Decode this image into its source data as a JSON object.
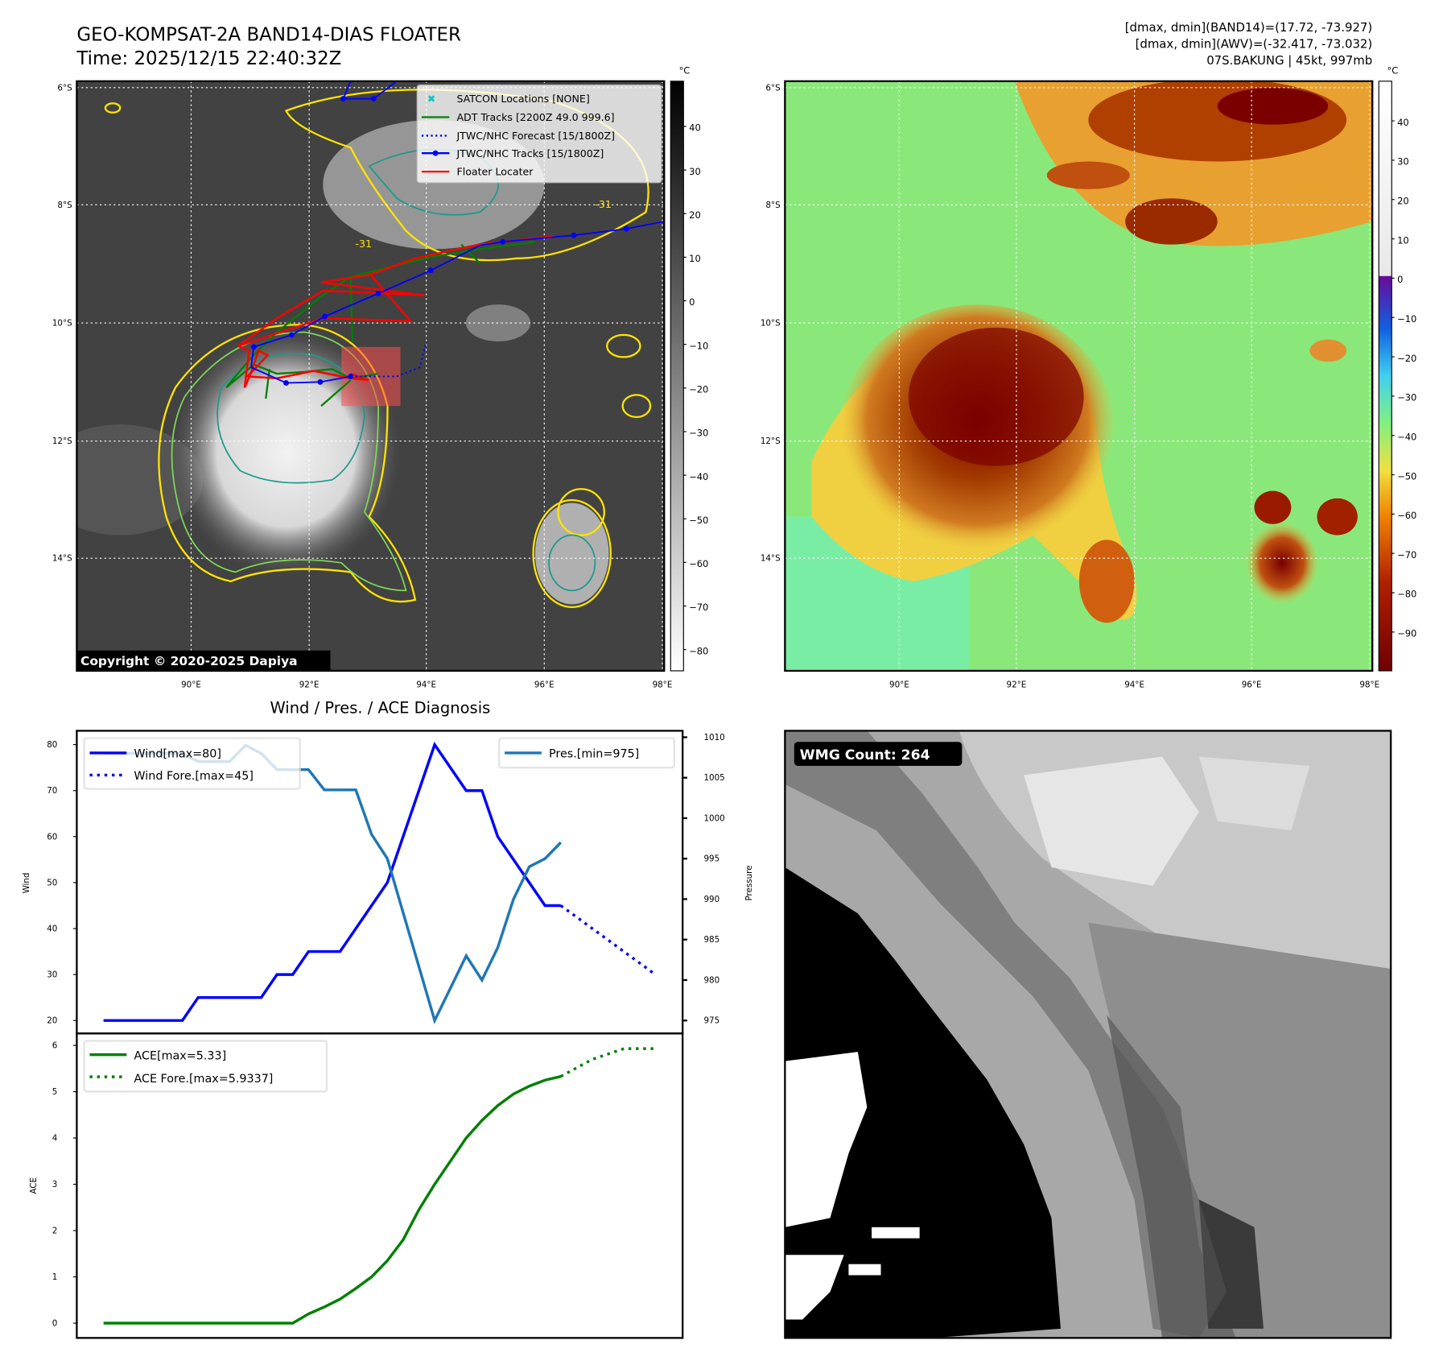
{
  "header": {
    "title_line1": "GEO-KOMPSAT-2A BAND14-DIAS FLOATER",
    "title_line2": "Time: 2025/12/15 22:40:32Z",
    "stats_line1": "[dmax, dmin](BAND14)=(17.72, -73.927)",
    "stats_line2": "[dmax, dmin](AWV)=(-32.417, -73.032)",
    "stats_line3": "07S.BAKUNG | 45kt, 997mb"
  },
  "map": {
    "lon_ticks": [
      "90°E",
      "92°E",
      "94°E",
      "96°E",
      "98°E"
    ],
    "lat_ticks": [
      "6°S",
      "8°S",
      "10°S",
      "12°S",
      "14°S"
    ],
    "contour_label": "-31",
    "legend": [
      {
        "label": "SATCON Locations [NONE]",
        "color": "#19c0c0"
      },
      {
        "label": "ADT Tracks [2200Z 49.0 999.6]",
        "color": "#008000"
      },
      {
        "label": "JTWC/NHC Forecast [15/1800Z]",
        "color": "#0000ff"
      },
      {
        "label": "JTWC/NHC Tracks [15/1800Z]",
        "color": "#0000ff"
      },
      {
        "label": "Floater Locater",
        "color": "#ff0000"
      }
    ],
    "copyright": "Copyright © 2020-2025 Dapiya",
    "cbar_unit": "°C",
    "cbar1_ticks": [
      "40",
      "30",
      "20",
      "10",
      "0",
      "−10",
      "−20",
      "−30",
      "−40",
      "−50",
      "−60",
      "−70",
      "−80"
    ],
    "cbar2_ticks": [
      "40",
      "30",
      "20",
      "10",
      "0",
      "−10",
      "−20",
      "−30",
      "−40",
      "−50",
      "−60",
      "−70",
      "−80",
      "−90"
    ]
  },
  "wmg": {
    "label": "WMG Count: 264"
  },
  "chart_data": [
    {
      "type": "line",
      "title": "Wind / Pres. / ACE Diagnosis",
      "ylabel": "Wind",
      "y2label": "Pressure",
      "ylim": [
        20,
        80
      ],
      "y2lim": [
        975,
        1010
      ],
      "yticks": [
        20,
        30,
        40,
        50,
        60,
        70,
        80
      ],
      "y2ticks": [
        975,
        980,
        985,
        990,
        995,
        1000,
        1005,
        1010
      ],
      "series": [
        {
          "name": "Wind[max=80]",
          "color": "#0000ff",
          "style": "solid",
          "x": [
            0,
            5,
            6,
            10,
            11,
            12,
            13,
            15,
            18,
            21,
            23,
            24,
            25,
            28,
            29
          ],
          "values": [
            20,
            20,
            25,
            25,
            30,
            30,
            35,
            35,
            50,
            80,
            70,
            70,
            60,
            45,
            45
          ]
        },
        {
          "name": "Wind Fore.[max=45]",
          "color": "#0000ff",
          "style": "dotted",
          "x": [
            29,
            35
          ],
          "values": [
            45,
            30
          ]
        },
        {
          "name": "Pres.[min=975]",
          "color": "#1f77b4",
          "style": "solid",
          "axis": "right",
          "x": [
            0,
            5,
            6,
            8,
            9,
            10,
            11,
            13,
            14,
            16,
            17,
            18,
            21,
            23,
            24,
            25,
            26,
            27,
            28,
            29
          ],
          "values": [
            1008,
            1008,
            1007,
            1007,
            1009,
            1008,
            1006,
            1006,
            1003.5,
            1003.5,
            998,
            995,
            975,
            983,
            980,
            984,
            990,
            994,
            995,
            997
          ]
        }
      ]
    },
    {
      "type": "line",
      "ylabel": "ACE",
      "ylim": [
        0,
        6
      ],
      "yticks": [
        0,
        1,
        2,
        3,
        4,
        5,
        6
      ],
      "series": [
        {
          "name": "ACE[max=5.33]",
          "color": "#008000",
          "style": "solid",
          "x": [
            0,
            12,
            13,
            14,
            15,
            16,
            17,
            18,
            19,
            20,
            21,
            22,
            23,
            24,
            25,
            26,
            27,
            28,
            29
          ],
          "values": [
            0,
            0,
            0.2,
            0.35,
            0.52,
            0.75,
            1.0,
            1.35,
            1.8,
            2.45,
            3.0,
            3.5,
            4.0,
            4.38,
            4.7,
            4.95,
            5.12,
            5.25,
            5.33
          ]
        },
        {
          "name": "ACE Fore.[max=5.9337]",
          "color": "#008000",
          "style": "dotted",
          "x": [
            29,
            31,
            33,
            35
          ],
          "values": [
            5.33,
            5.7,
            5.93,
            5.93
          ]
        }
      ]
    }
  ]
}
